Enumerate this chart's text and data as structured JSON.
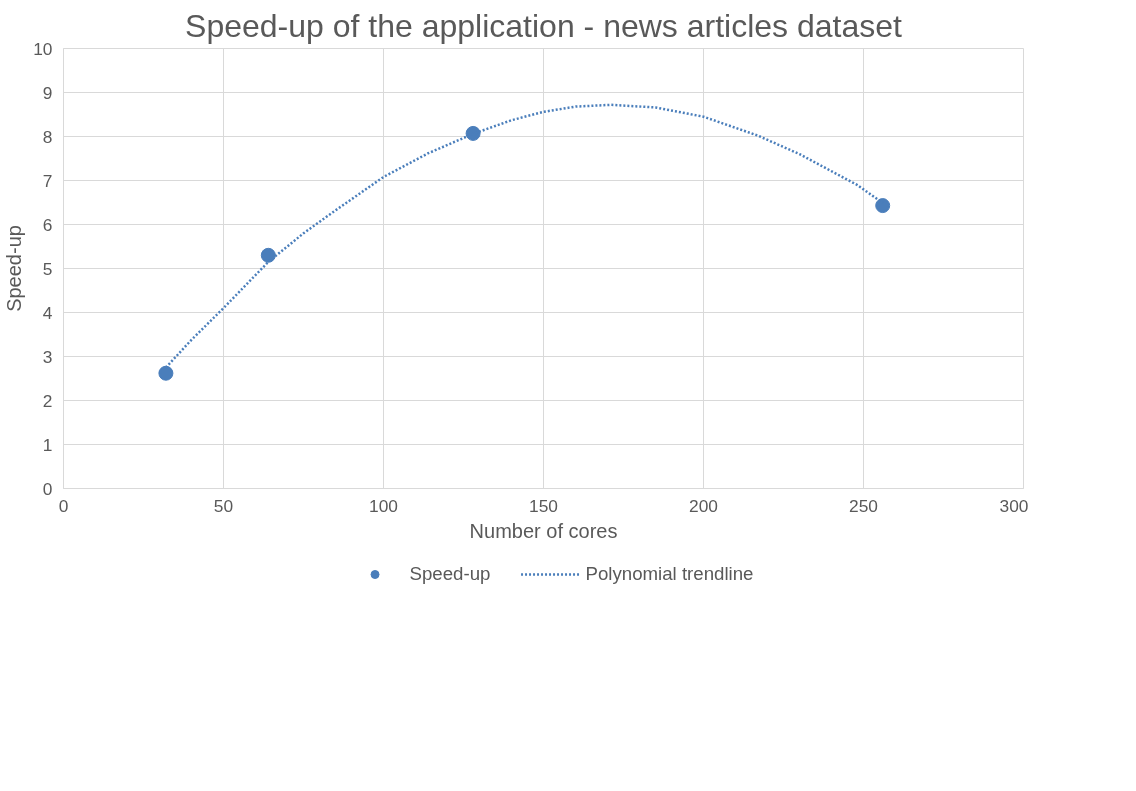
{
  "chart_data": {
    "type": "scatter",
    "title": "Speed-up of the application - news articles dataset",
    "xlabel": "Number of cores",
    "ylabel": "Speed-up",
    "xlim": [
      0,
      300
    ],
    "xticks": [
      0,
      50,
      100,
      150,
      200,
      250,
      300
    ],
    "ylim": [
      0,
      10
    ],
    "yticks": [
      0,
      1,
      2,
      3,
      4,
      5,
      6,
      7,
      8,
      9,
      10
    ],
    "grid": true,
    "legend": "bottom",
    "marker": "circle",
    "series": [
      {
        "name": "Speed-up",
        "color": "#4a7ebb",
        "x": [
          32,
          64,
          128,
          256
        ],
        "values": [
          2.62,
          5.3,
          8.07,
          6.43
        ]
      },
      {
        "name": "Polynomial trendline",
        "type": "line",
        "line_style": "dotted",
        "marker": "none",
        "color": "#4a7ebb",
        "x": [
          32,
          40,
          50,
          64,
          75,
          84,
          100,
          114,
          128,
          140,
          150,
          160,
          171,
          185,
          200,
          217,
          230,
          239,
          248,
          256
        ],
        "values": [
          2.75,
          3.38,
          4.1,
          5.15,
          5.8,
          6.27,
          7.08,
          7.62,
          8.06,
          8.37,
          8.56,
          8.68,
          8.72,
          8.66,
          8.45,
          8.02,
          7.6,
          7.25,
          6.9,
          6.49
        ]
      }
    ]
  }
}
